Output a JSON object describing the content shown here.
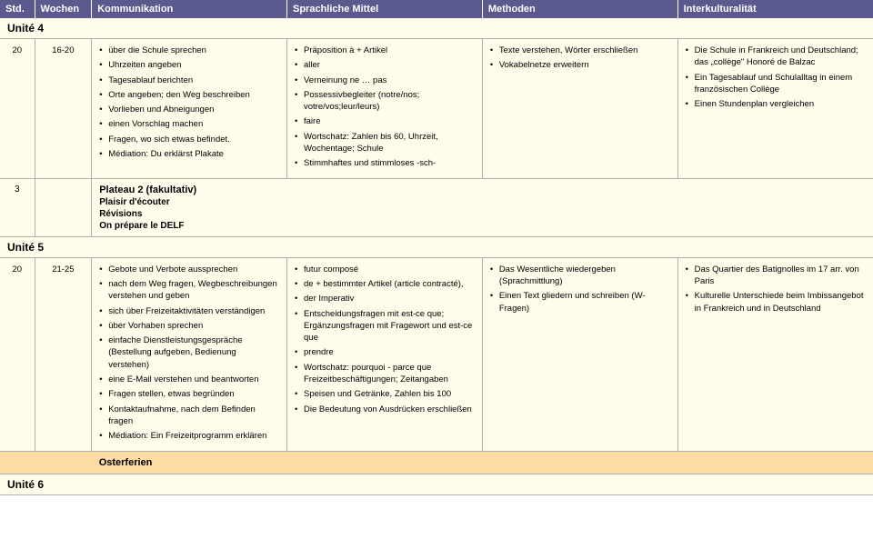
{
  "headers": {
    "std": "Std.",
    "wochen": "Wochen",
    "komm": "Kommunikation",
    "sprach": "Sprachliche Mittel",
    "meth": "Methoden",
    "inter": "Interkulturalität"
  },
  "unite4": {
    "label": "Unité 4"
  },
  "row4": {
    "std": "20",
    "wochen": "16-20",
    "komm": [
      "über die Schule sprechen",
      "Uhrzeiten angeben",
      "Tagesablauf berichten",
      "Orte angeben; den Weg beschreiben",
      "Vorlieben und Abneigungen",
      "einen Vorschlag machen",
      "Fragen, wo sich etwas befindet.",
      "Médiation: Du erklärst Plakate"
    ],
    "sprach": [
      "Präposition à + Artikel",
      "aller",
      "Verneinung ne … pas",
      "Possessivbegleiter (notre/nos; votre/vos;leur/leurs)",
      "faire",
      "Wortschatz: Zahlen bis 60, Uhrzeit, Wochentage; Schule",
      "Stimmhaftes und stimmloses -sch-"
    ],
    "meth": [
      "Texte verstehen, Wörter erschließen",
      "Vokabelnetze erweitern"
    ],
    "inter": [
      "Die Schule in Frankreich und Deutschland;  das „collège\" Honoré de Balzac",
      "Ein Tagesablauf und Schulalltag in einem französischen Collège",
      "Einen Stundenplan vergleichen"
    ]
  },
  "plateau": {
    "std": "3",
    "title": "Plateau 2 (fakultativ)",
    "sub1": "Plaisir d'écouter",
    "sub2": "Révisions",
    "sub3": "On prépare le DELF"
  },
  "unite5": {
    "label": "Unité 5"
  },
  "row5": {
    "std": "20",
    "wochen": "21-25",
    "komm": [
      "Gebote und Verbote aussprechen",
      "nach dem Weg fragen, Wegbeschreibungen verstehen und geben",
      "sich über Freizeitaktivitäten verständigen",
      "über Vorhaben sprechen",
      "einfache Dienstleistungsgespräche (Bestellung aufgeben, Bedienung verstehen)",
      "eine E-Mail verstehen und beantworten",
      "Fragen stellen, etwas begründen",
      "Kontaktaufnahme, nach dem Befinden fragen",
      "Médiation: Ein Freizeitprogramm erklären"
    ],
    "sprach": [
      "futur composé",
      "de + bestimmter Artikel (article contracté),",
      "der Imperativ",
      "Entscheidungsfragen mit est-ce que; Ergänzungsfragen mit Fragewort und est-ce que",
      "prendre",
      "Wortschatz: pourquoi - parce que Freizeitbeschäftigungen; Zeitangaben",
      "Speisen und Getränke, Zahlen bis 100",
      "Die Bedeutung von Ausdrücken erschließen"
    ],
    "meth": [
      "Das Wesentliche wiedergeben (Sprachmittlung)",
      "Einen Text gliedern und schreiben (W-Fragen)"
    ],
    "inter": [
      "Das Quartier des Batignolles im 17 arr. von Paris",
      "Kulturelle Unterschiede beim Imbissangebot in Frankreich und in Deutschland"
    ]
  },
  "oster": {
    "label": "Osterferien"
  },
  "unite6": {
    "label": "Unité 6"
  }
}
